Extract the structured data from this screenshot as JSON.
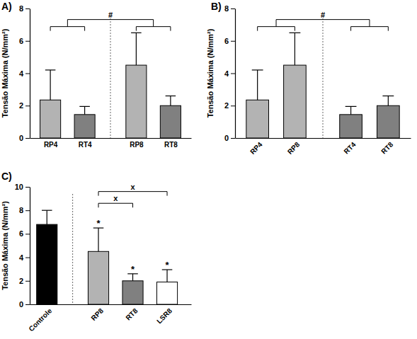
{
  "chart_data": [
    {
      "type": "bar",
      "title": "A)",
      "y_label": "Tensão Máxima (N/mm²)",
      "categories": [
        "RP4",
        "RT4",
        "RP8",
        "RT8"
      ],
      "values": [
        2.35,
        1.45,
        4.5,
        2.0
      ],
      "errors": [
        1.85,
        0.5,
        2.0,
        0.6
      ],
      "colors": [
        "#b3b3b3",
        "#808080",
        "#b3b3b3",
        "#808080"
      ],
      "ylim": [
        0,
        8
      ],
      "yticks": [
        0,
        2,
        4,
        6,
        8
      ],
      "annotations": [
        {
          "text": "#",
          "between": [
            [
              0,
              1
            ],
            [
              2,
              3
            ]
          ]
        }
      ]
    },
    {
      "type": "bar",
      "title": "B)",
      "y_label": "Tensão Máxima (N/mm²)",
      "categories": [
        "RP4",
        "RP8",
        "RT4",
        "RT8"
      ],
      "values": [
        2.35,
        4.5,
        1.45,
        2.0
      ],
      "errors": [
        1.85,
        2.0,
        0.5,
        0.6
      ],
      "colors": [
        "#b3b3b3",
        "#b3b3b3",
        "#808080",
        "#808080"
      ],
      "ylim": [
        0,
        8
      ],
      "yticks": [
        0,
        2,
        4,
        6,
        8
      ],
      "annotations": [
        {
          "text": "#",
          "between": [
            [
              0,
              1
            ],
            [
              2,
              3
            ]
          ]
        }
      ]
    },
    {
      "type": "bar",
      "title": "C)",
      "y_label": "Tensão Máxima (N/mm²)",
      "categories": [
        "Controle",
        "RP8",
        "RT8",
        "LSR8"
      ],
      "values": [
        6.8,
        4.5,
        2.0,
        1.9
      ],
      "errors": [
        1.2,
        2.0,
        0.6,
        1.05
      ],
      "colors": [
        "#000000",
        "#b3b3b3",
        "#808080",
        "#ffffff"
      ],
      "ylim": [
        0,
        10
      ],
      "yticks": [
        0,
        2,
        4,
        6,
        8,
        10
      ],
      "annotations": [
        {
          "text": "x",
          "between": [
            [
              1
            ],
            [
              2
            ]
          ]
        },
        {
          "text": "x",
          "between": [
            [
              1
            ],
            [
              3
            ]
          ]
        },
        {
          "text": "*",
          "over": 1
        },
        {
          "text": "*",
          "over": 2
        },
        {
          "text": "*",
          "over": 3
        }
      ]
    }
  ]
}
